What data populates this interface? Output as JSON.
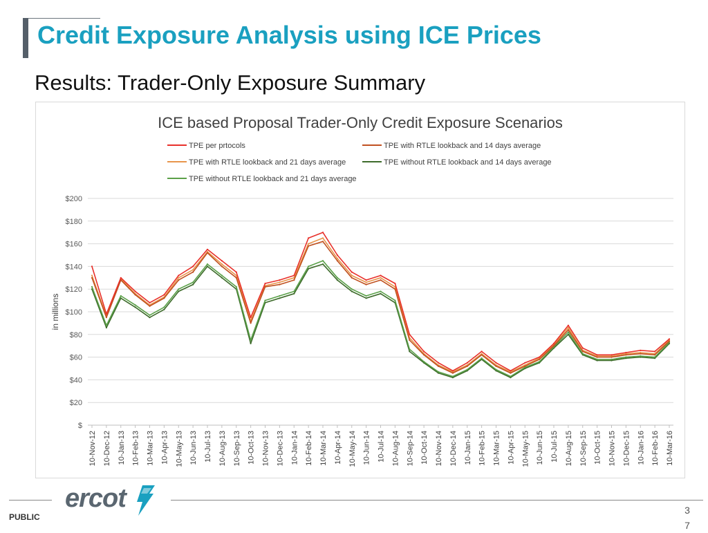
{
  "slide": {
    "title": "Credit Exposure Analysis using ICE Prices",
    "subtitle": "Results: Trader-Only Exposure Summary",
    "footer_label": "PUBLIC",
    "page_number": "3\n7",
    "logo_text": "ercot"
  },
  "colors": {
    "title": "#1aa0c0",
    "accent_bar": "#555f69"
  },
  "chart_data": {
    "type": "line",
    "title": "ICE based Proposal Trader-Only Credit Exposure Scenarios",
    "ylabel": "in millions",
    "xlabel": "",
    "ylim": [
      0,
      200
    ],
    "y_ticks": [
      "$",
      "$20",
      "$40",
      "$60",
      "$80",
      "$100",
      "$120",
      "$140",
      "$160",
      "$180",
      "$200"
    ],
    "grid": "horizontal",
    "legend_position": "top",
    "categories": [
      "10-Nov-12",
      "10-Dec-12",
      "10-Jan-13",
      "10-Feb-13",
      "10-Mar-13",
      "10-Apr-13",
      "10-May-13",
      "10-Jun-13",
      "10-Jul-13",
      "10-Aug-13",
      "10-Sep-13",
      "10-Oct-13",
      "10-Nov-13",
      "10-Dec-13",
      "10-Jan-14",
      "10-Feb-14",
      "10-Mar-14",
      "10-Apr-14",
      "10-May-14",
      "10-Jun-14",
      "10-Jul-14",
      "10-Aug-14",
      "10-Sep-14",
      "10-Oct-14",
      "10-Nov-14",
      "10-Dec-14",
      "10-Jan-15",
      "10-Feb-15",
      "10-Mar-15",
      "10-Apr-15",
      "10-May-15",
      "10-Jun-15",
      "10-Jul-15",
      "10-Aug-15",
      "10-Sep-15",
      "10-Oct-15",
      "10-Nov-15",
      "10-Dec-15",
      "10-Jan-16",
      "10-Feb-16",
      "10-Mar-16"
    ],
    "series": [
      {
        "name": "TPE per prtocols",
        "color": "#e8302a",
        "values": [
          140,
          98,
          130,
          118,
          108,
          115,
          132,
          140,
          155,
          145,
          135,
          95,
          125,
          128,
          132,
          165,
          170,
          150,
          135,
          128,
          132,
          125,
          80,
          65,
          55,
          48,
          55,
          65,
          55,
          48,
          55,
          60,
          72,
          88,
          68,
          62,
          62,
          64,
          66,
          65,
          76
        ]
      },
      {
        "name": "TPE with RTLE lookback and 14 days average",
        "color": "#c0501f",
        "values": [
          130,
          95,
          128,
          115,
          105,
          112,
          128,
          135,
          152,
          140,
          130,
          90,
          122,
          124,
          128,
          158,
          162,
          145,
          130,
          124,
          128,
          120,
          75,
          62,
          52,
          46,
          52,
          62,
          52,
          46,
          52,
          58,
          70,
          84,
          65,
          60,
          60,
          62,
          63,
          62,
          74
        ]
      },
      {
        "name": "TPE with RTLE lookback and 21 days average",
        "color": "#e8944a",
        "values": [
          132,
          96,
          129,
          116,
          106,
          113,
          130,
          137,
          153,
          142,
          132,
          92,
          123,
          126,
          130,
          160,
          165,
          147,
          132,
          126,
          130,
          122,
          77,
          63,
          53,
          47,
          53,
          63,
          53,
          47,
          53,
          59,
          71,
          86,
          66,
          61,
          61,
          63,
          64,
          63,
          75
        ]
      },
      {
        "name": "TPE without RTLE lookback and 14 days average",
        "color": "#3d6b2a",
        "values": [
          120,
          86,
          112,
          104,
          95,
          102,
          118,
          124,
          140,
          130,
          120,
          72,
          108,
          112,
          116,
          138,
          142,
          128,
          118,
          112,
          116,
          108,
          65,
          55,
          46,
          42,
          48,
          58,
          48,
          42,
          50,
          55,
          68,
          80,
          62,
          57,
          57,
          59,
          60,
          59,
          72
        ]
      },
      {
        "name": "TPE without RTLE lookback and 21 days average",
        "color": "#5aa048",
        "values": [
          122,
          88,
          114,
          106,
          97,
          104,
          120,
          126,
          142,
          132,
          122,
          75,
          110,
          114,
          118,
          140,
          145,
          130,
          120,
          114,
          118,
          110,
          67,
          56,
          47,
          43,
          49,
          59,
          49,
          43,
          51,
          56,
          69,
          82,
          63,
          58,
          58,
          60,
          61,
          60,
          73
        ]
      }
    ]
  }
}
